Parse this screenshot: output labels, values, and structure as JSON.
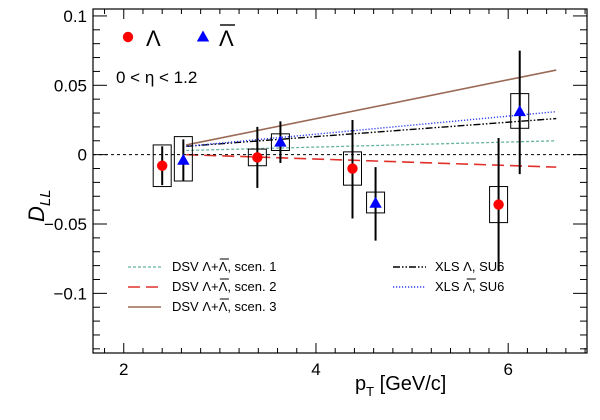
{
  "chart_data": {
    "type": "scatter",
    "xlabel": "p",
    "xlabel_sub": "T",
    "xlabel_unit": " [GeV/c]",
    "ylabel": "D",
    "ylabel_sub": "LL",
    "xlim": [
      1.68,
      6.82
    ],
    "ylim": [
      -0.143,
      0.105
    ],
    "xticks": [
      2,
      4,
      6
    ],
    "xtick_labels": [
      "2",
      "4",
      "6"
    ],
    "yticks": [
      -0.1,
      -0.05,
      0,
      0.05,
      0.1
    ],
    "ytick_labels": [
      "−0.1",
      "−0.05",
      "0",
      "0.05",
      "0.1"
    ],
    "eta_range_label": "0 < η < 1.2",
    "zero_line": true,
    "legend_position": "top-left",
    "series": [
      {
        "name": "Λ",
        "marker": "circle",
        "color": "#ff0000",
        "points": [
          {
            "x": 2.4,
            "y": -0.008,
            "stat_lo": -0.022,
            "stat_hi": 0.006,
            "sys_lo": -0.023,
            "sys_hi": 0.007
          },
          {
            "x": 3.39,
            "y": -0.002,
            "stat_lo": -0.024,
            "stat_hi": 0.02,
            "sys_lo": -0.008,
            "sys_hi": 0.004
          },
          {
            "x": 4.38,
            "y": -0.01,
            "stat_lo": -0.046,
            "stat_hi": 0.025,
            "sys_lo": -0.022,
            "sys_hi": 0.002
          },
          {
            "x": 5.9,
            "y": -0.036,
            "stat_lo": -0.084,
            "stat_hi": 0.012,
            "sys_lo": -0.049,
            "sys_hi": -0.023
          }
        ]
      },
      {
        "name": "Λ̅",
        "marker": "triangle",
        "color": "#0000ff",
        "points": [
          {
            "x": 2.62,
            "y": -0.004,
            "stat_lo": -0.019,
            "stat_hi": 0.011,
            "sys_lo": -0.019,
            "sys_hi": 0.013
          },
          {
            "x": 3.63,
            "y": 0.009,
            "stat_lo": -0.006,
            "stat_hi": 0.024,
            "sys_lo": 0.003,
            "sys_hi": 0.015
          },
          {
            "x": 4.62,
            "y": -0.035,
            "stat_lo": -0.062,
            "stat_hi": -0.009,
            "sys_lo": -0.042,
            "sys_hi": -0.027
          },
          {
            "x": 6.12,
            "y": 0.031,
            "stat_lo": -0.014,
            "stat_hi": 0.075,
            "sys_lo": 0.019,
            "sys_hi": 0.044
          }
        ]
      }
    ],
    "curves": [
      {
        "name": "DSV Λ+Λ̅, scen. 1",
        "color": "#66b2a0",
        "dash": "3,2",
        "width": 1.3,
        "x": [
          2.65,
          6.5
        ],
        "y": [
          0.003,
          0.01
        ]
      },
      {
        "name": "DSV Λ+Λ̅, scen. 2",
        "color": "#e0302a",
        "dash": "12,6",
        "width": 1.6,
        "x": [
          2.65,
          6.5
        ],
        "y": [
          0.0,
          -0.009
        ]
      },
      {
        "name": "DSV Λ+Λ̅, scen. 3",
        "color": "#9a6a56",
        "dash": "",
        "width": 1.6,
        "x": [
          2.65,
          6.5
        ],
        "y": [
          0.007,
          0.061
        ]
      },
      {
        "name": "XLS Λ, SU6",
        "color": "#000000",
        "dash": "7,2,1.5,2,1.5,2",
        "width": 1.4,
        "x": [
          2.65,
          6.5
        ],
        "y": [
          0.006,
          0.026
        ]
      },
      {
        "name": "XLS Λ̅, SU6",
        "color": "#2a3ef0",
        "dash": "1.2,1.8",
        "width": 1.4,
        "x": [
          2.65,
          6.5
        ],
        "y": [
          0.006,
          0.031
        ]
      }
    ],
    "top_legend": [
      {
        "label": "Λ",
        "marker": "circle",
        "color": "#ff0000"
      },
      {
        "label": "Λ",
        "marker": "triangle",
        "color": "#0000ff",
        "overline": true
      }
    ],
    "bottom_legend": [
      {
        "prefix": "DSV Λ+",
        "bar": "Λ",
        "suffix": ", scen. 1",
        "curve": 0
      },
      {
        "prefix": "DSV Λ+",
        "bar": "Λ",
        "suffix": ", scen. 2",
        "curve": 1
      },
      {
        "prefix": "DSV Λ+",
        "bar": "Λ",
        "suffix": ", scen. 3",
        "curve": 2
      },
      {
        "prefix": "XLS Λ, SU6",
        "bar": "",
        "suffix": "",
        "curve": 3
      },
      {
        "prefix": "XLS ",
        "bar": "Λ",
        "suffix": ", SU6",
        "curve": 4
      }
    ]
  }
}
